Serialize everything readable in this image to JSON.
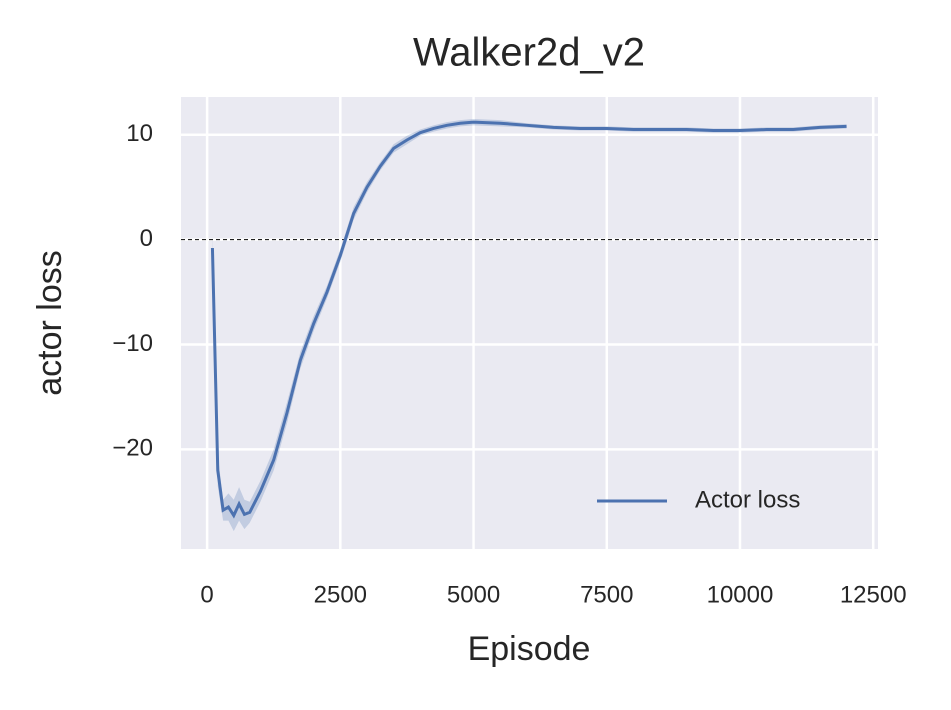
{
  "chart_data": {
    "type": "line",
    "title": "Walker2d_v2",
    "xlabel": "Episode",
    "ylabel": "actor loss",
    "x": [
      100,
      200,
      300,
      400,
      500,
      600,
      700,
      800,
      1000,
      1250,
      1500,
      1750,
      2000,
      2250,
      2500,
      2750,
      3000,
      3250,
      3500,
      3750,
      4000,
      4250,
      4500,
      4750,
      5000,
      5500,
      6000,
      6500,
      7000,
      7500,
      8000,
      8500,
      9000,
      9500,
      10000,
      10500,
      11000,
      11500,
      12000
    ],
    "series": [
      {
        "name": "Actor loss",
        "color": "#4c72b0",
        "values": [
          -0.8,
          -22,
          -25.8,
          -25.5,
          -26.3,
          -25.2,
          -26.2,
          -26.0,
          -24,
          -21,
          -16.5,
          -11.5,
          -8,
          -5,
          -1.5,
          2.5,
          5,
          7,
          8.7,
          9.5,
          10.2,
          10.6,
          10.9,
          11.1,
          11.2,
          11.1,
          10.9,
          10.7,
          10.6,
          10.6,
          10.5,
          10.5,
          10.5,
          10.4,
          10.4,
          10.5,
          10.5,
          10.7,
          10.8
        ],
        "ci_lower": [
          -1.5,
          -23.5,
          -26.8,
          -26.8,
          -27.8,
          -26.8,
          -27.6,
          -27.0,
          -25,
          -22,
          -17.5,
          -12.3,
          -8.7,
          -5.6,
          -2.1,
          1.9,
          4.5,
          6.6,
          8.3,
          9.1,
          9.9,
          10.3,
          10.6,
          10.8,
          10.9,
          10.8,
          10.7,
          10.5,
          10.4,
          10.4,
          10.3,
          10.3,
          10.3,
          10.2,
          10.2,
          10.3,
          10.3,
          10.5,
          10.6
        ],
        "ci_upper": [
          0.3,
          -20.5,
          -24.8,
          -24.2,
          -24.8,
          -23.6,
          -24.8,
          -25.0,
          -23,
          -20,
          -15.5,
          -10.7,
          -7.3,
          -4.4,
          -0.9,
          3.1,
          5.5,
          7.4,
          9.1,
          9.9,
          10.5,
          10.9,
          11.2,
          11.4,
          11.5,
          11.4,
          11.1,
          10.9,
          10.8,
          10.8,
          10.7,
          10.7,
          10.7,
          10.6,
          10.6,
          10.7,
          10.7,
          10.9,
          11.0
        ]
      }
    ],
    "xlim": [
      -490,
      12590
    ],
    "ylim": [
      -29.5,
      13.6
    ],
    "xticks": [
      0,
      2500,
      5000,
      7500,
      10000,
      12500
    ],
    "yticks": [
      {
        "value": -20,
        "label": "−20"
      },
      {
        "value": -10,
        "label": "−10"
      },
      0,
      10
    ],
    "hline": 0,
    "grid": true,
    "legend": "lower right"
  }
}
